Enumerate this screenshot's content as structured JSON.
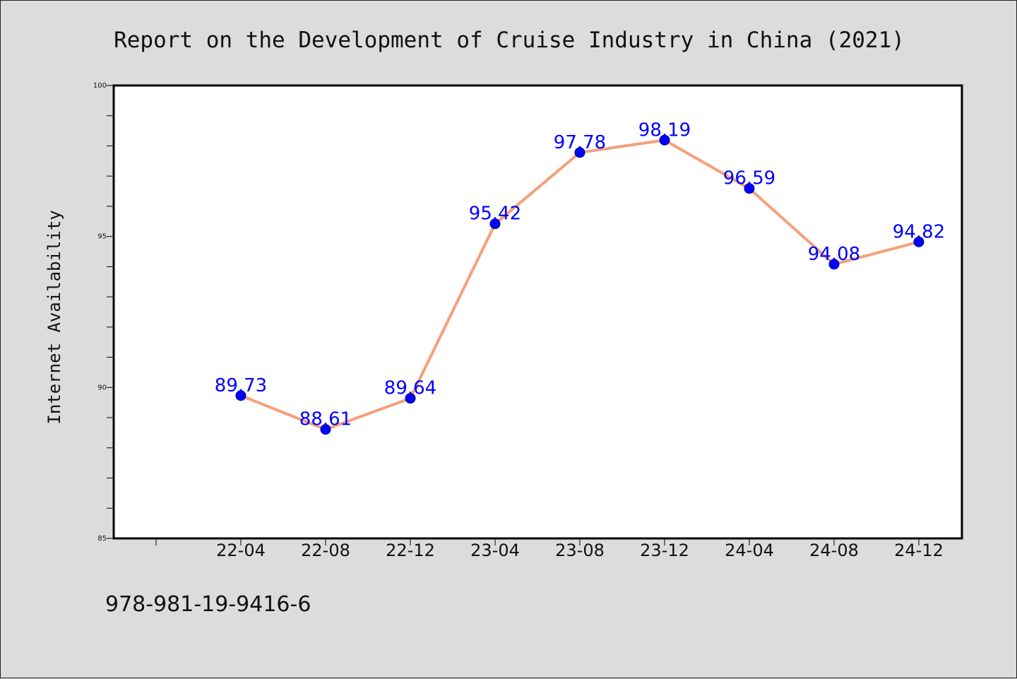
{
  "chart_data": {
    "type": "line",
    "title": "Report on the Development of Cruise Industry in China (2021)",
    "xlabel": "",
    "ylabel": "Internet Availability",
    "categories": [
      "22-04",
      "22-08",
      "22-12",
      "23-04",
      "23-08",
      "23-12",
      "24-04",
      "24-08",
      "24-12"
    ],
    "series": [
      {
        "values": [
          89.73,
          88.61,
          89.64,
          95.42,
          97.78,
          98.19,
          96.59,
          94.08,
          94.82
        ],
        "labels": [
          "89.73",
          "88.61",
          "89.64",
          "95.42",
          "97.78",
          "98.19",
          "96.59",
          "94.08",
          "94.82"
        ],
        "line_color": "#f4a07a",
        "marker_color": "#0000ff"
      }
    ],
    "ylim": [
      85,
      100
    ],
    "yticks": [
      "85",
      "90",
      "95",
      "100"
    ],
    "grid": false,
    "legend": "none"
  },
  "footer": {
    "isbn": "978-981-19-9416-6"
  }
}
